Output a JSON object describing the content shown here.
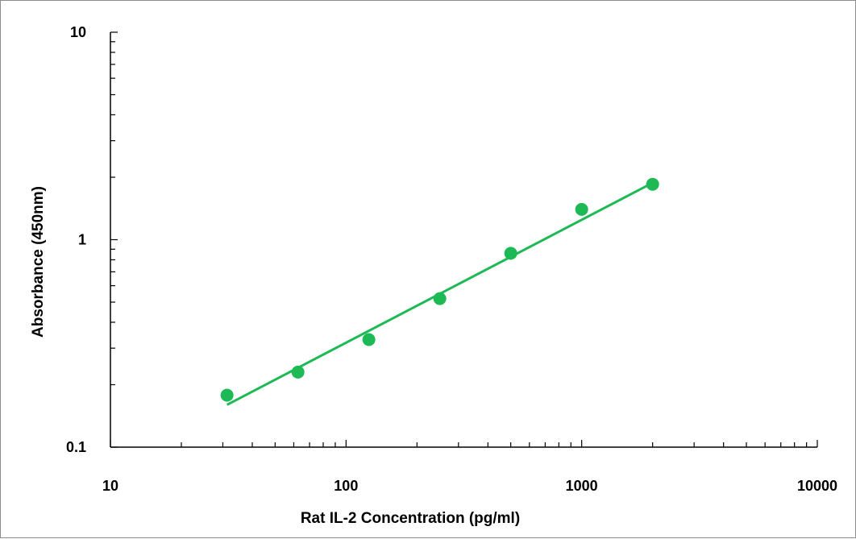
{
  "chart_data": {
    "type": "scatter",
    "title": "",
    "xlabel": "Rat IL-2 Concentration (pg/ml)",
    "ylabel": "Absorbance (450nm)",
    "x_scale": "log",
    "y_scale": "log",
    "xlim": [
      10,
      10000
    ],
    "ylim": [
      0.1,
      10
    ],
    "x_ticks": [
      10,
      100,
      1000,
      10000
    ],
    "x_tick_labels": [
      "10",
      "100",
      "1000",
      "10000"
    ],
    "y_ticks": [
      0.1,
      1,
      10
    ],
    "y_tick_labels": [
      "0.1",
      "1",
      "10"
    ],
    "grid": false,
    "legend": "none",
    "series": [
      {
        "x": [
          31.25,
          62.5,
          125,
          250,
          500,
          1000,
          2000
        ],
        "y": [
          0.178,
          0.23,
          0.33,
          0.52,
          0.86,
          1.4,
          1.85
        ],
        "color": "#1db954"
      }
    ],
    "fit_line": {
      "x": [
        31.25,
        2000
      ],
      "y": [
        0.16,
        1.88
      ],
      "color": "#1db954"
    }
  }
}
